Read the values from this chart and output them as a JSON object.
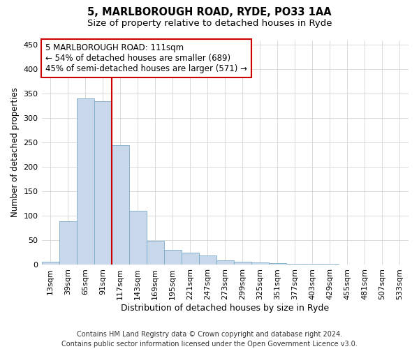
{
  "title1": "5, MARLBOROUGH ROAD, RYDE, PO33 1AA",
  "title2": "Size of property relative to detached houses in Ryde",
  "xlabel": "Distribution of detached houses by size in Ryde",
  "ylabel": "Number of detached properties",
  "categories": [
    "13sqm",
    "39sqm",
    "65sqm",
    "91sqm",
    "117sqm",
    "143sqm",
    "169sqm",
    "195sqm",
    "221sqm",
    "247sqm",
    "273sqm",
    "299sqm",
    "325sqm",
    "351sqm",
    "377sqm",
    "403sqm",
    "429sqm",
    "455sqm",
    "481sqm",
    "507sqm",
    "533sqm"
  ],
  "values": [
    5,
    88,
    340,
    335,
    244,
    110,
    49,
    30,
    24,
    19,
    9,
    5,
    4,
    3,
    2,
    1,
    1,
    0,
    0,
    0,
    0
  ],
  "bar_color": "#c8d8ea",
  "bar_edge_color": "#7aaac8",
  "vline_color": "#cc0000",
  "vline_x_index": 3.5,
  "annotation_line1": "5 MARLBOROUGH ROAD: 111sqm",
  "annotation_line2": "← 54% of detached houses are smaller (689)",
  "annotation_line3": "45% of semi-detached houses are larger (571) →",
  "annotation_box_color": "white",
  "annotation_box_edge": "#cc0000",
  "ylim": [
    0,
    460
  ],
  "yticks": [
    0,
    50,
    100,
    150,
    200,
    250,
    300,
    350,
    400,
    450
  ],
  "footer": "Contains HM Land Registry data © Crown copyright and database right 2024.\nContains public sector information licensed under the Open Government Licence v3.0.",
  "title1_fontsize": 10.5,
  "title2_fontsize": 9.5,
  "xlabel_fontsize": 9,
  "ylabel_fontsize": 8.5,
  "tick_fontsize": 8,
  "annotation_fontsize": 8.5,
  "footer_fontsize": 7
}
